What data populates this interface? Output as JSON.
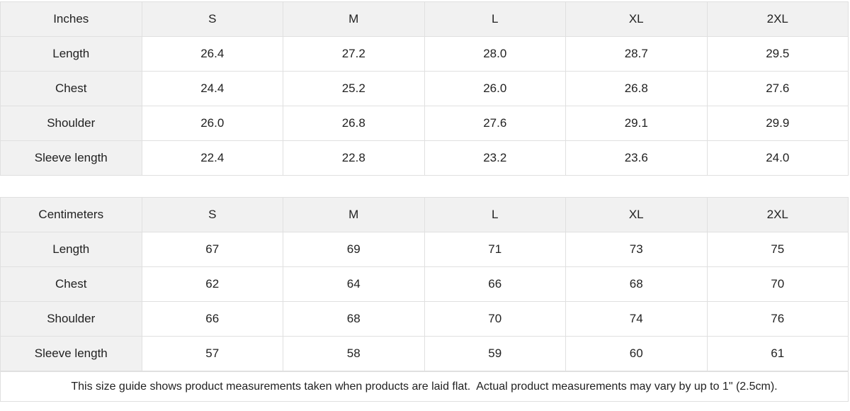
{
  "chart_data": [
    {
      "type": "table",
      "unit_label": "Inches",
      "sizes": [
        "S",
        "M",
        "L",
        "XL",
        "2XL"
      ],
      "rows": [
        {
          "label": "Length",
          "values": [
            "26.4",
            "27.2",
            "28.0",
            "28.7",
            "29.5"
          ]
        },
        {
          "label": "Chest",
          "values": [
            "24.4",
            "25.2",
            "26.0",
            "26.8",
            "27.6"
          ]
        },
        {
          "label": "Shoulder",
          "values": [
            "26.0",
            "26.8",
            "27.6",
            "29.1",
            "29.9"
          ]
        },
        {
          "label": "Sleeve length",
          "values": [
            "22.4",
            "22.8",
            "23.2",
            "23.6",
            "24.0"
          ]
        }
      ]
    },
    {
      "type": "table",
      "unit_label": "Centimeters",
      "sizes": [
        "S",
        "M",
        "L",
        "XL",
        "2XL"
      ],
      "rows": [
        {
          "label": "Length",
          "values": [
            "67",
            "69",
            "71",
            "73",
            "75"
          ]
        },
        {
          "label": "Chest",
          "values": [
            "62",
            "64",
            "66",
            "68",
            "70"
          ]
        },
        {
          "label": "Shoulder",
          "values": [
            "66",
            "68",
            "70",
            "74",
            "76"
          ]
        },
        {
          "label": "Sleeve length",
          "values": [
            "57",
            "58",
            "59",
            "60",
            "61"
          ]
        }
      ]
    }
  ],
  "footer_note": "This size guide shows product measurements taken when products are laid flat.  Actual product measurements may vary by up to 1\" (2.5cm).",
  "colors": {
    "header_bg": "#f1f1f1",
    "border": "#e0e0e0",
    "text": "#222222",
    "bg": "#ffffff"
  }
}
